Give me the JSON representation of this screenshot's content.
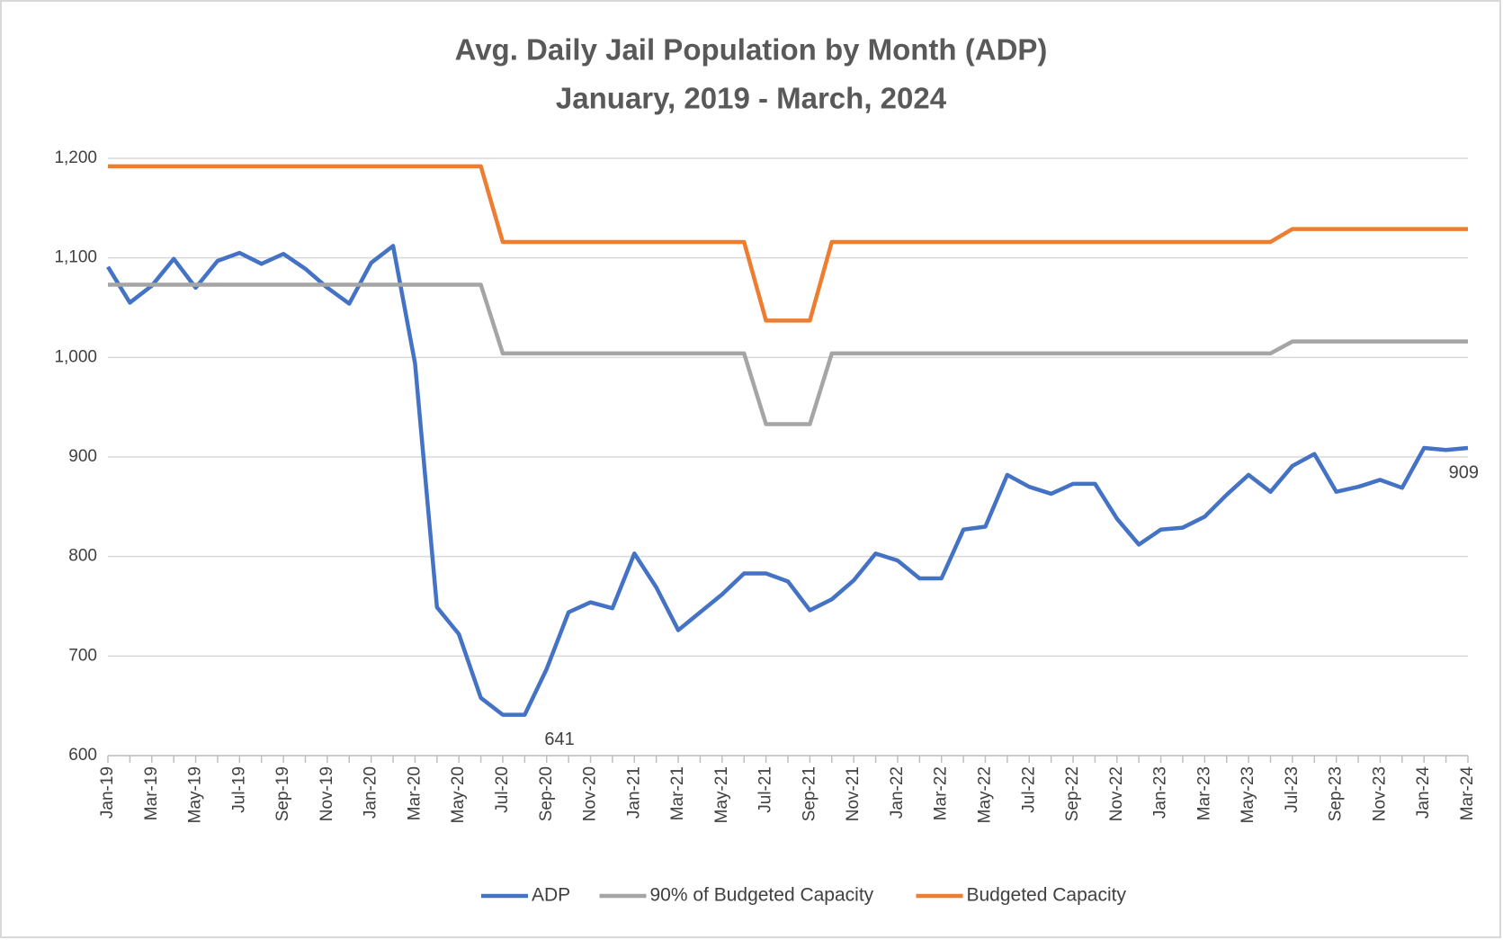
{
  "chart_data": {
    "type": "line",
    "title": "Avg. Daily Jail Population by Month (ADP)",
    "subtitle": "January, 2019 - March, 2024",
    "categories": [
      "Jan-19",
      null,
      "Mar-19",
      null,
      "May-19",
      null,
      "Jul-19",
      null,
      "Sep-19",
      null,
      "Nov-19",
      null,
      "Jan-20",
      null,
      "Mar-20",
      null,
      "May-20",
      null,
      "Jul-20",
      null,
      "Sep-20",
      null,
      "Nov-20",
      null,
      "Jan-21",
      null,
      "Mar-21",
      null,
      "May-21",
      null,
      "Jul-21",
      null,
      "Sep-21",
      null,
      "Nov-21",
      null,
      "Jan-22",
      null,
      "Mar-22",
      null,
      "May-22",
      null,
      "Jul-22",
      null,
      "Sep-22",
      null,
      "Nov-22",
      null,
      "Jan-23",
      null,
      "Mar-23",
      null,
      "May-23",
      null,
      "Jul-23",
      null,
      "Sep-23",
      null,
      "Nov-23",
      null,
      "Jan-24",
      null,
      "Mar-24"
    ],
    "series": [
      {
        "name": "ADP",
        "color": "#4472c4",
        "values": [
          1091,
          1055,
          1072,
          1099,
          1070,
          1097,
          1105,
          1094,
          1104,
          1089,
          1070,
          1054,
          1095,
          1112,
          994,
          749,
          722,
          658,
          641,
          641,
          687,
          744,
          754,
          748,
          803,
          769,
          726,
          744,
          762,
          783,
          783,
          775,
          746,
          757,
          776,
          803,
          796,
          778,
          778,
          827,
          830,
          882,
          870,
          863,
          873,
          873,
          838,
          812,
          827,
          829,
          840,
          862,
          882,
          865,
          891,
          903,
          865,
          870,
          877,
          869,
          909,
          907,
          909
        ],
        "value_labels": [
          null,
          null,
          null,
          null,
          null,
          null,
          null,
          null,
          null,
          null,
          null,
          null,
          null,
          null,
          null,
          null,
          null,
          null,
          null,
          "641",
          null,
          null,
          null,
          null,
          null,
          null,
          null,
          null,
          null,
          null,
          null,
          null,
          null,
          null,
          null,
          null,
          null,
          null,
          null,
          null,
          null,
          null,
          null,
          null,
          null,
          null,
          null,
          null,
          null,
          null,
          null,
          null,
          null,
          null,
          null,
          null,
          null,
          null,
          null,
          null,
          null,
          null,
          "909"
        ]
      },
      {
        "name": "90% of Budgeted Capacity",
        "color": "#a5a5a5",
        "values": [
          1073,
          1073,
          1073,
          1073,
          1073,
          1073,
          1073,
          1073,
          1073,
          1073,
          1073,
          1073,
          1073,
          1073,
          1073,
          1073,
          1073,
          1073,
          1004,
          1004,
          1004,
          1004,
          1004,
          1004,
          1004,
          1004,
          1004,
          1004,
          1004,
          1004,
          933,
          933,
          933,
          1004,
          1004,
          1004,
          1004,
          1004,
          1004,
          1004,
          1004,
          1004,
          1004,
          1004,
          1004,
          1004,
          1004,
          1004,
          1004,
          1004,
          1004,
          1004,
          1004,
          1004,
          1016,
          1016,
          1016,
          1016,
          1016,
          1016,
          1016,
          1016,
          1016
        ]
      },
      {
        "name": "Budgeted Capacity",
        "color": "#ed7d31",
        "values": [
          1192,
          1192,
          1192,
          1192,
          1192,
          1192,
          1192,
          1192,
          1192,
          1192,
          1192,
          1192,
          1192,
          1192,
          1192,
          1192,
          1192,
          1192,
          1116,
          1116,
          1116,
          1116,
          1116,
          1116,
          1116,
          1116,
          1116,
          1116,
          1116,
          1116,
          1037,
          1037,
          1037,
          1116,
          1116,
          1116,
          1116,
          1116,
          1116,
          1116,
          1116,
          1116,
          1116,
          1116,
          1116,
          1116,
          1116,
          1116,
          1116,
          1116,
          1116,
          1116,
          1116,
          1116,
          1129,
          1129,
          1129,
          1129,
          1129,
          1129,
          1129,
          1129,
          1129
        ]
      }
    ],
    "ylim": [
      600,
      1200
    ],
    "yticks": [
      600,
      700,
      800,
      900,
      {
        "value": 1000,
        "label": "1,000"
      },
      {
        "value": 1100,
        "label": "1,100"
      },
      {
        "value": 1200,
        "label": "1,200"
      }
    ],
    "grid": true,
    "legend": "bottom"
  }
}
